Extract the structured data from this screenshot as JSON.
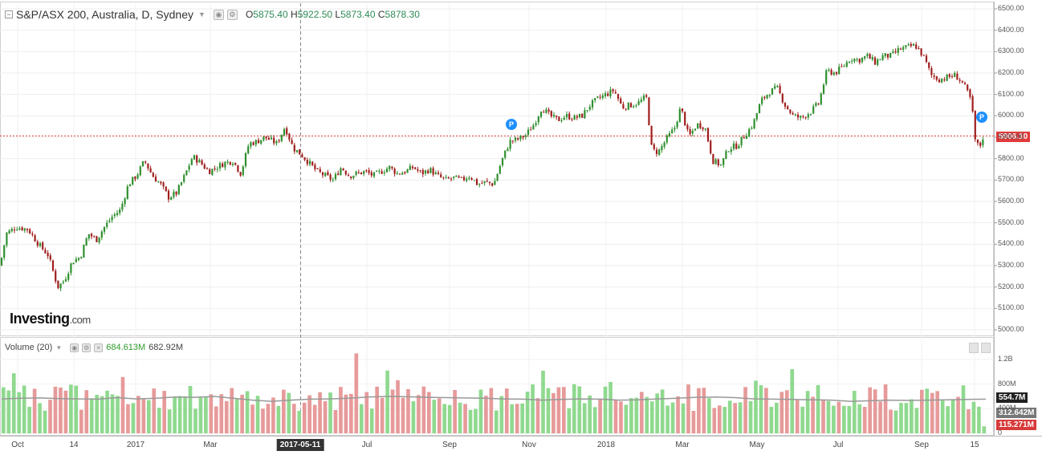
{
  "header": {
    "symbol_title": "S&P/ASX 200, Australia, D, Sydney",
    "ohlc": [
      {
        "key": "O",
        "value": "5875.40"
      },
      {
        "key": "H",
        "value": "5922.50"
      },
      {
        "key": "L",
        "value": "5873.40"
      },
      {
        "key": "C",
        "value": "5878.30"
      }
    ]
  },
  "volume_header": {
    "label": "Volume (20)",
    "value1": "684.613M",
    "value2": "682.92M"
  },
  "logo": {
    "main": "Investing",
    "suffix": ".com"
  },
  "price_marker": {
    "label": "5906.10",
    "color": "#e03a3a"
  },
  "volume_markers": [
    {
      "label": "554.7M",
      "color": "#222222"
    },
    {
      "label": "312.642M",
      "color": "#777777"
    },
    {
      "label": "115.271M",
      "color": "#d83a3a"
    }
  ],
  "selected_date": "2017-05-11",
  "pivot_label": "P",
  "colors": {
    "up": "#2f8f2f",
    "down": "#a01e1e",
    "vol_up": "#8fd98f",
    "vol_down": "#e79a9a",
    "ma": "#999999"
  },
  "chart_data": [
    {
      "type": "candlestick",
      "title": "S&P/ASX 200, Australia, D, Sydney",
      "x_ticks": [
        "Oct",
        "14",
        "2017",
        "Mar",
        "2017-05-11",
        "Jul",
        "Sep",
        "Nov",
        "2018",
        "Mar",
        "May",
        "Jul",
        "Sep",
        "15"
      ],
      "y_ticks": [
        "6500.00",
        "6400.00",
        "6300.00",
        "6200.00",
        "6100.00",
        "6000.00",
        "5900.00",
        "5800.00",
        "5700.00",
        "5600.00",
        "5500.00",
        "5400.00",
        "5300.00",
        "5200.00",
        "5100.00",
        "5000.00"
      ],
      "ylim": [
        5000,
        6500
      ],
      "close_path": [
        [
          0,
          5300
        ],
        [
          8,
          5450
        ],
        [
          20,
          5480
        ],
        [
          35,
          5470
        ],
        [
          48,
          5400
        ],
        [
          60,
          5350
        ],
        [
          72,
          5200
        ],
        [
          80,
          5230
        ],
        [
          90,
          5320
        ],
        [
          100,
          5340
        ],
        [
          110,
          5450
        ],
        [
          120,
          5420
        ],
        [
          130,
          5480
        ],
        [
          140,
          5530
        ],
        [
          150,
          5560
        ],
        [
          160,
          5680
        ],
        [
          170,
          5720
        ],
        [
          180,
          5790
        ],
        [
          190,
          5720
        ],
        [
          200,
          5680
        ],
        [
          210,
          5620
        ],
        [
          220,
          5640
        ],
        [
          230,
          5720
        ],
        [
          240,
          5810
        ],
        [
          250,
          5780
        ],
        [
          260,
          5740
        ],
        [
          270,
          5760
        ],
        [
          280,
          5780
        ],
        [
          290,
          5790
        ],
        [
          300,
          5730
        ],
        [
          310,
          5870
        ],
        [
          320,
          5880
        ],
        [
          330,
          5900
        ],
        [
          345,
          5870
        ],
        [
          355,
          5950
        ],
        [
          365,
          5850
        ],
        [
          375,
          5820
        ],
        [
          385,
          5780
        ],
        [
          395,
          5740
        ],
        [
          405,
          5720
        ],
        [
          415,
          5700
        ],
        [
          425,
          5760
        ],
        [
          435,
          5720
        ],
        [
          445,
          5730
        ],
        [
          455,
          5740
        ],
        [
          465,
          5720
        ],
        [
          475,
          5740
        ],
        [
          485,
          5760
        ],
        [
          495,
          5730
        ],
        [
          505,
          5740
        ],
        [
          515,
          5760
        ],
        [
          525,
          5730
        ],
        [
          535,
          5750
        ],
        [
          545,
          5720
        ],
        [
          555,
          5700
        ],
        [
          565,
          5710
        ],
        [
          575,
          5700
        ],
        [
          585,
          5720
        ],
        [
          595,
          5680
        ],
        [
          605,
          5690
        ],
        [
          615,
          5680
        ],
        [
          625,
          5790
        ],
        [
          635,
          5880
        ],
        [
          645,
          5890
        ],
        [
          655,
          5910
        ],
        [
          665,
          5960
        ],
        [
          675,
          6040
        ],
        [
          685,
          6000
        ],
        [
          695,
          5980
        ],
        [
          705,
          6000
        ],
        [
          715,
          5990
        ],
        [
          725,
          6000
        ],
        [
          735,
          6050
        ],
        [
          745,
          6080
        ],
        [
          755,
          6100
        ],
        [
          765,
          6120
        ],
        [
          775,
          6040
        ],
        [
          785,
          6050
        ],
        [
          795,
          6060
        ],
        [
          805,
          6090
        ],
        [
          812,
          5840
        ],
        [
          820,
          5830
        ],
        [
          830,
          5890
        ],
        [
          840,
          5940
        ],
        [
          848,
          6040
        ],
        [
          858,
          5900
        ],
        [
          868,
          5960
        ],
        [
          878,
          5950
        ],
        [
          888,
          5790
        ],
        [
          898,
          5770
        ],
        [
          908,
          5850
        ],
        [
          918,
          5860
        ],
        [
          928,
          5910
        ],
        [
          938,
          5960
        ],
        [
          948,
          6070
        ],
        [
          958,
          6110
        ],
        [
          968,
          6130
        ],
        [
          978,
          6050
        ],
        [
          988,
          6000
        ],
        [
          998,
          5990
        ],
        [
          1010,
          6020
        ],
        [
          1020,
          6060
        ],
        [
          1030,
          6210
        ],
        [
          1040,
          6200
        ],
        [
          1050,
          6230
        ],
        [
          1060,
          6270
        ],
        [
          1070,
          6260
        ],
        [
          1080,
          6280
        ],
        [
          1090,
          6250
        ],
        [
          1100,
          6280
        ],
        [
          1110,
          6280
        ],
        [
          1120,
          6310
        ],
        [
          1130,
          6320
        ],
        [
          1140,
          6330
        ],
        [
          1150,
          6280
        ],
        [
          1160,
          6190
        ],
        [
          1170,
          6170
        ],
        [
          1180,
          6180
        ],
        [
          1190,
          6190
        ],
        [
          1200,
          6150
        ],
        [
          1210,
          6070
        ],
        [
          1215,
          5880
        ],
        [
          1220,
          5850
        ],
        [
          1225,
          5906
        ]
      ],
      "last_price": 5906.1
    },
    {
      "type": "bar",
      "title": "Volume (20)",
      "y_ticks": [
        "1.2B",
        "800M",
        "400M",
        "0"
      ],
      "ylim": [
        0,
        1400
      ],
      "bar_count": 190,
      "ma_values_M": [
        560,
        570,
        575,
        565,
        560,
        555,
        580,
        560,
        570,
        590,
        585,
        600,
        570,
        540,
        520,
        540,
        555,
        560,
        570,
        590,
        600,
        595,
        585,
        580,
        575,
        570,
        560,
        555,
        540,
        550,
        560,
        555,
        540,
        545,
        560,
        570,
        585,
        590,
        580,
        560,
        555,
        550,
        545,
        540,
        520,
        530,
        540,
        535,
        540,
        545,
        550,
        555
      ]
    }
  ]
}
